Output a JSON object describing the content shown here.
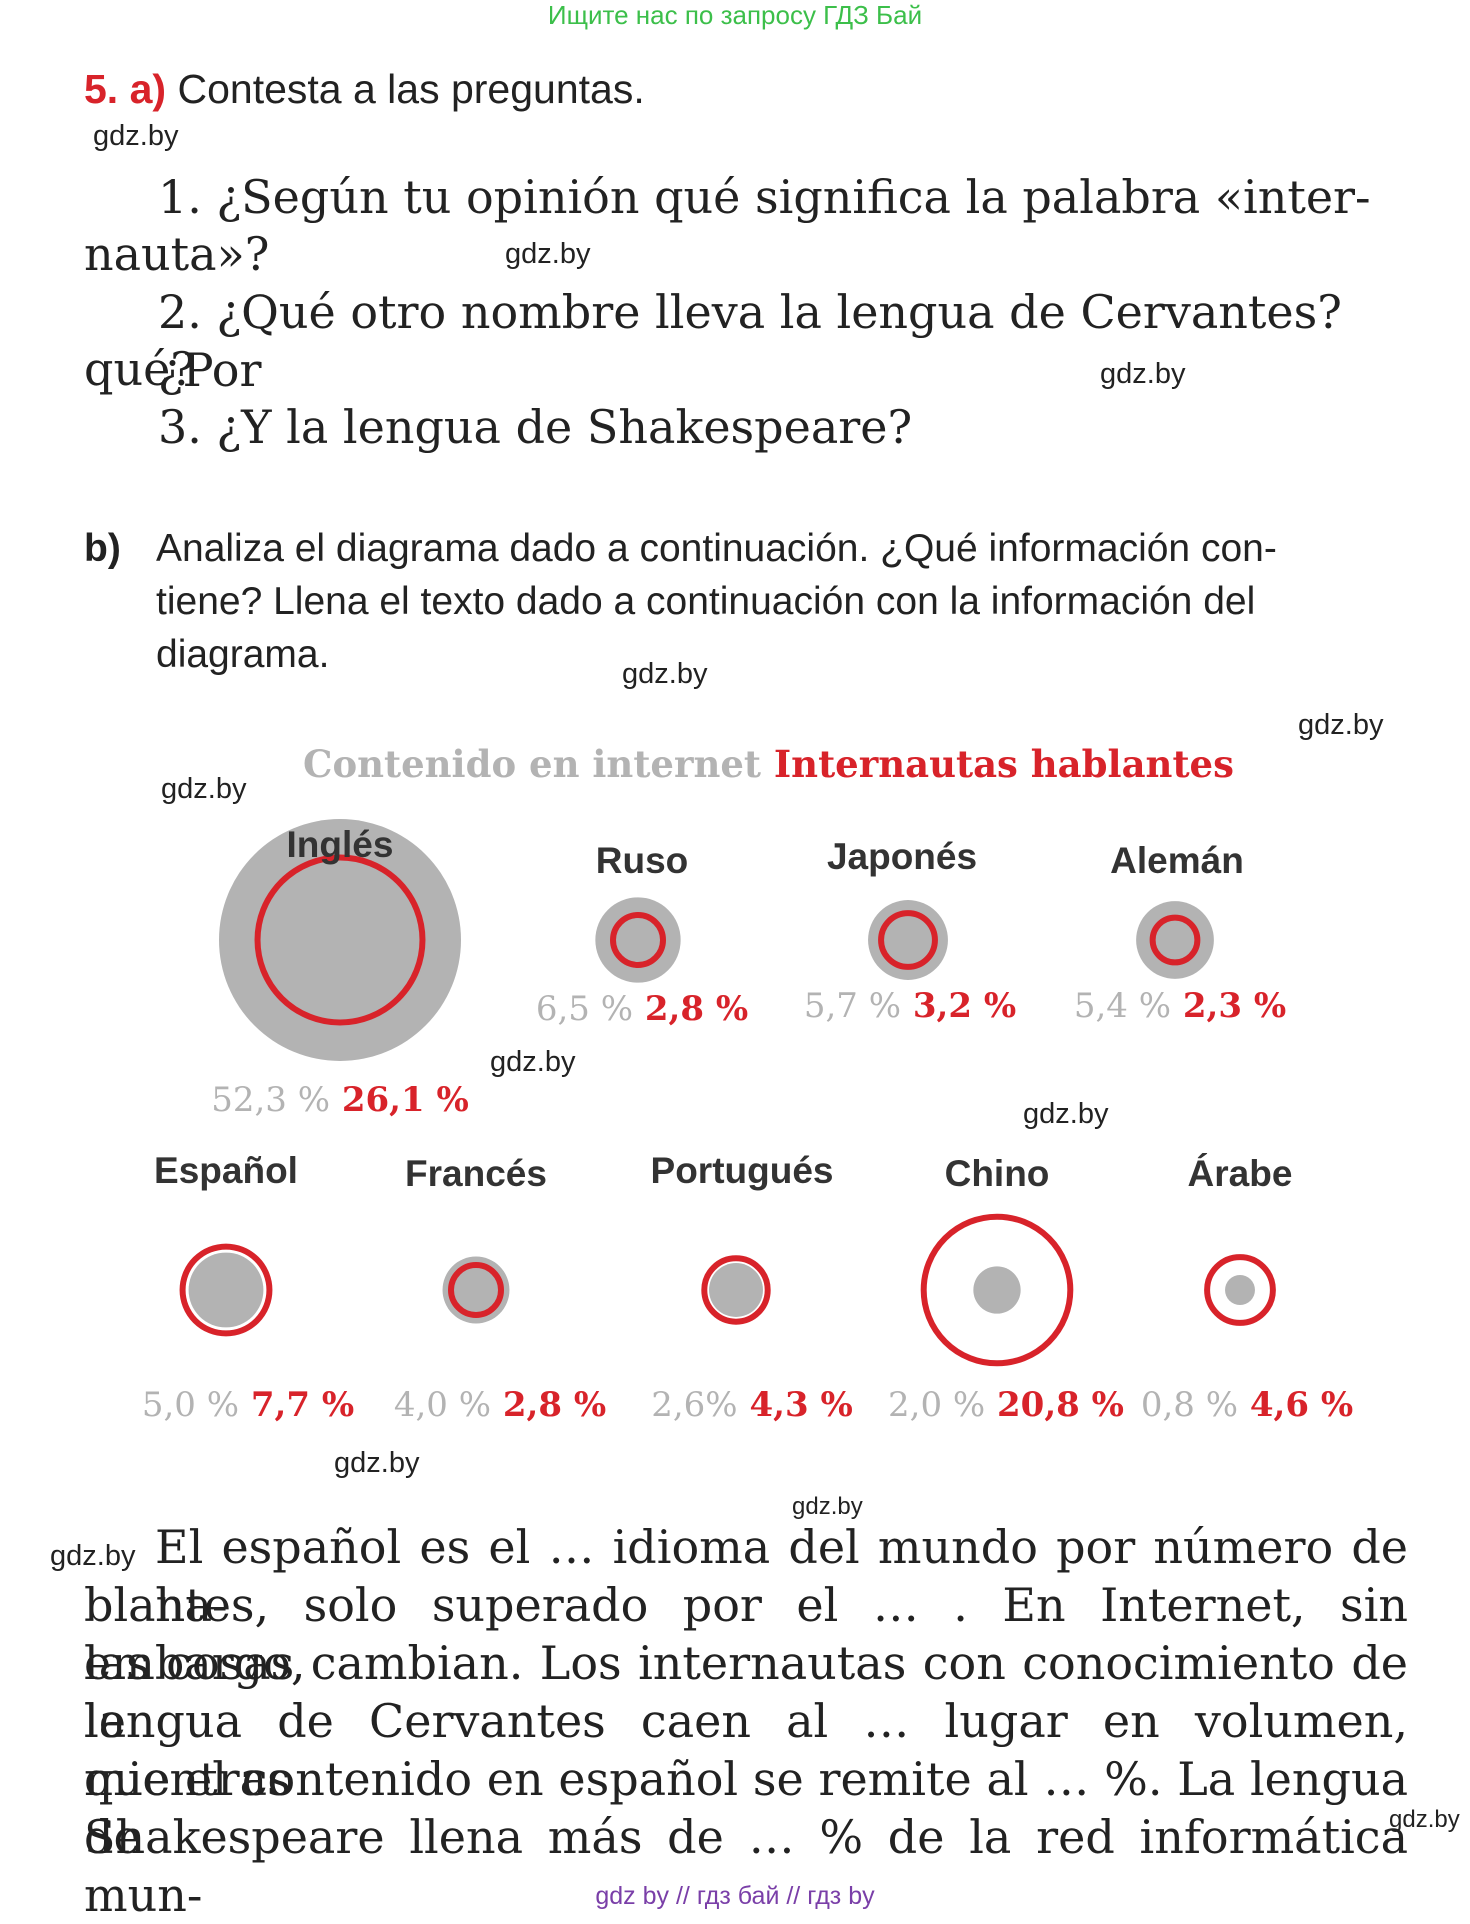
{
  "top_banner": "Ищите нас по запросу ГДЗ Бай",
  "watermark": "gdz.by",
  "exercise": {
    "number": "5.",
    "part_a_letter": "a)",
    "part_a_title": "Contesta a las preguntas.",
    "questions": [
      {
        "line1": "1. ¿Según tu opinión qué significa la palabra «inter-",
        "line2": "nauta»?"
      },
      {
        "line1": "2. ¿Qué otro nombre lleva la lengua de Cervantes? ¿Por",
        "line2": "qué?"
      },
      {
        "line1": "3. ¿Y la lengua de Shakespeare?"
      }
    ],
    "part_b_letter": "b)",
    "part_b_lines": [
      "Analiza el diagrama dado a continuación. ¿Qué información con-",
      "tiene? Llena el texto dado a continuación con la información del",
      "diagrama."
    ]
  },
  "chart_data": {
    "type": "bubble",
    "title_gray": "Contenido en internet",
    "title_red": "Internautas hablantes",
    "series": [
      {
        "name": "Contenido en internet",
        "color": "#b3b3b3"
      },
      {
        "name": "Internautas hablantes",
        "color": "#d8232a"
      }
    ],
    "languages": [
      {
        "name": "Inglés",
        "content": 52.3,
        "speakers": 26.1,
        "content_label": "52,3 %",
        "speakers_label": "26,1 %"
      },
      {
        "name": "Ruso",
        "content": 6.5,
        "speakers": 2.8,
        "content_label": "6,5 %",
        "speakers_label": "2,8 %"
      },
      {
        "name": "Japonés",
        "content": 5.7,
        "speakers": 3.2,
        "content_label": "5,7 %",
        "speakers_label": "3,2 %"
      },
      {
        "name": "Alemán",
        "content": 5.4,
        "speakers": 2.3,
        "content_label": "5,4 %",
        "speakers_label": "2,3 %"
      },
      {
        "name": "Español",
        "content": 5.0,
        "speakers": 7.7,
        "content_label": "5,0 %",
        "speakers_label": "7,7 %"
      },
      {
        "name": "Francés",
        "content": 4.0,
        "speakers": 2.8,
        "content_label": "4,0 %",
        "speakers_label": "2,8 %"
      },
      {
        "name": "Portugués",
        "content": 2.6,
        "speakers": 4.3,
        "content_label": "2,6%",
        "speakers_label": "4,3 %"
      },
      {
        "name": "Chino",
        "content": 2.0,
        "speakers": 20.8,
        "content_label": "2,0 %",
        "speakers_label": "20,8 %"
      },
      {
        "name": "Árabe",
        "content": 0.8,
        "speakers": 4.6,
        "content_label": "0,8 %",
        "speakers_label": "4,6 %"
      }
    ]
  },
  "paragraph_lines": [
    "El español es el … idioma del mundo por número de ha-",
    "blantes, solo superado por el … . En Internet, sin embargo,",
    "las cosas cambian. Los internautas con conocimiento de la",
    "lengua de Cervantes caen al … lugar en volumen, mientras",
    "que el contenido en español se remite al … %. La lengua de",
    "Shakespeare llena más de … % de la red informática mun-"
  ],
  "bottom_banner": "gdz by  //  гдз бай  //  гдз by"
}
